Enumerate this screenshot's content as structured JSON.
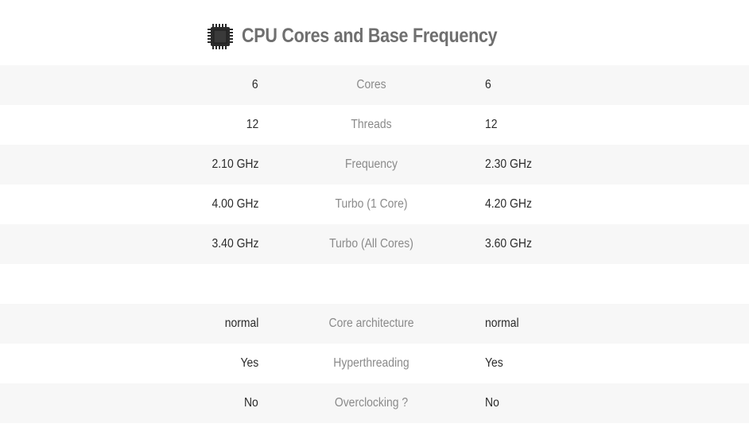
{
  "title": "CPU Cores and Base Frequency",
  "icon": "cpu-chip-icon",
  "colors": {
    "title": "#6f6f6f",
    "row_shade": "#f7f7f7",
    "label": "#8a8a8a",
    "value": "#2b2b2b"
  },
  "rows_group1": [
    {
      "left": "6",
      "label": "Cores",
      "right": "6"
    },
    {
      "left": "12",
      "label": "Threads",
      "right": "12"
    },
    {
      "left": "2.10 GHz",
      "label": "Frequency",
      "right": "2.30 GHz"
    },
    {
      "left": "4.00 GHz",
      "label": "Turbo (1 Core)",
      "right": "4.20 GHz"
    },
    {
      "left": "3.40 GHz",
      "label": "Turbo (All Cores)",
      "right": "3.60 GHz"
    }
  ],
  "rows_group2": [
    {
      "left": "normal",
      "label": "Core architecture",
      "right": "normal"
    },
    {
      "left": "Yes",
      "label": "Hyperthreading",
      "right": "Yes"
    },
    {
      "left": "No",
      "label": "Overclocking ?",
      "right": "No"
    }
  ]
}
